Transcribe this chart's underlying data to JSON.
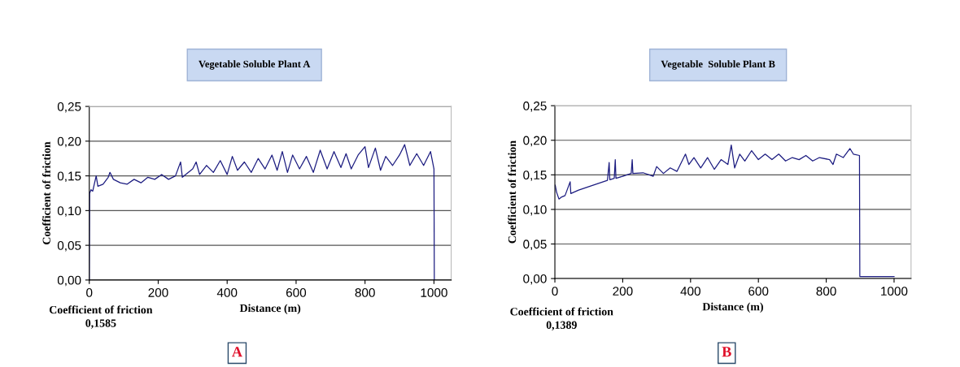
{
  "chart_data": [
    {
      "type": "line",
      "title": "Vegetable Soluble Plant A",
      "xlabel": "Distance (m)",
      "ylabel": "Coefficient of friction",
      "annotations": [
        "Coefficient of friction\n0,1585",
        "A"
      ],
      "series": [
        {
          "color": "#1c1c80",
          "x": [
            0,
            1,
            5,
            10,
            20,
            25,
            40,
            55,
            60,
            70,
            90,
            110,
            130,
            150,
            170,
            190,
            210,
            230,
            250,
            265,
            270,
            300,
            310,
            320,
            340,
            360,
            380,
            400,
            415,
            430,
            450,
            470,
            490,
            510,
            530,
            545,
            560,
            575,
            590,
            610,
            630,
            650,
            670,
            690,
            710,
            730,
            745,
            760,
            780,
            800,
            810,
            830,
            845,
            860,
            880,
            900,
            915,
            930,
            950,
            970,
            990,
            1000,
            1001
          ],
          "values": [
            0.0,
            0.125,
            0.13,
            0.128,
            0.15,
            0.135,
            0.138,
            0.148,
            0.155,
            0.145,
            0.14,
            0.138,
            0.145,
            0.14,
            0.148,
            0.145,
            0.152,
            0.145,
            0.15,
            0.17,
            0.148,
            0.16,
            0.17,
            0.152,
            0.165,
            0.155,
            0.172,
            0.152,
            0.178,
            0.158,
            0.17,
            0.155,
            0.175,
            0.16,
            0.18,
            0.158,
            0.185,
            0.155,
            0.18,
            0.16,
            0.178,
            0.155,
            0.187,
            0.16,
            0.185,
            0.162,
            0.182,
            0.16,
            0.18,
            0.192,
            0.162,
            0.19,
            0.158,
            0.178,
            0.165,
            0.18,
            0.195,
            0.165,
            0.182,
            0.165,
            0.185,
            0.16,
            0.0
          ]
        }
      ],
      "xlim": [
        0,
        1050
      ],
      "xticks": [
        0,
        200,
        400,
        600,
        800,
        1000
      ],
      "ylim": [
        0,
        0.25
      ],
      "yticks": [
        {
          "value": 0,
          "label": "0,00"
        },
        {
          "value": 0.05,
          "label": "0,05"
        },
        {
          "value": 0.1,
          "label": "0,10"
        },
        {
          "value": 0.15,
          "label": "0,15"
        },
        {
          "value": 0.2,
          "label": "0,20"
        },
        {
          "value": 0.25,
          "label": "0,25"
        }
      ],
      "grid": "y",
      "legend": false
    },
    {
      "type": "line",
      "title": "Vegetable  Soluble Plant B",
      "xlabel": "Distance (m)",
      "ylabel": "Coefficient of friction",
      "annotations": [
        "Coefficient of friction\n0,1389",
        "B"
      ],
      "series": [
        {
          "color": "#1c1c80",
          "x": [
            1,
            5,
            12,
            20,
            30,
            45,
            47,
            70,
            100,
            130,
            155,
            160,
            162,
            175,
            178,
            180,
            200,
            225,
            228,
            230,
            260,
            290,
            300,
            320,
            340,
            360,
            375,
            385,
            395,
            410,
            430,
            450,
            470,
            490,
            510,
            520,
            530,
            545,
            560,
            580,
            600,
            620,
            640,
            660,
            680,
            700,
            720,
            740,
            760,
            780,
            810,
            820,
            830,
            850,
            870,
            880,
            898,
            899,
            1000
          ],
          "values": [
            0.135,
            0.125,
            0.115,
            0.118,
            0.12,
            0.14,
            0.123,
            0.128,
            0.133,
            0.138,
            0.142,
            0.168,
            0.143,
            0.145,
            0.172,
            0.145,
            0.148,
            0.152,
            0.172,
            0.152,
            0.153,
            0.148,
            0.162,
            0.152,
            0.16,
            0.155,
            0.17,
            0.18,
            0.165,
            0.175,
            0.16,
            0.175,
            0.158,
            0.172,
            0.165,
            0.193,
            0.16,
            0.18,
            0.17,
            0.185,
            0.172,
            0.18,
            0.172,
            0.18,
            0.17,
            0.175,
            0.172,
            0.178,
            0.17,
            0.175,
            0.172,
            0.165,
            0.18,
            0.175,
            0.188,
            0.18,
            0.178,
            0.003,
            0.003
          ]
        }
      ],
      "xlim": [
        0,
        1050
      ],
      "xticks": [
        0,
        200,
        400,
        600,
        800,
        1000
      ],
      "ylim": [
        0,
        0.25
      ],
      "yticks": [
        {
          "value": 0,
          "label": "0,00"
        },
        {
          "value": 0.05,
          "label": "0,05"
        },
        {
          "value": 0.1,
          "label": "0,10"
        },
        {
          "value": 0.15,
          "label": "0,15"
        },
        {
          "value": 0.2,
          "label": "0,20"
        },
        {
          "value": 0.25,
          "label": "0,25"
        }
      ],
      "grid": "y",
      "legend": false
    }
  ]
}
